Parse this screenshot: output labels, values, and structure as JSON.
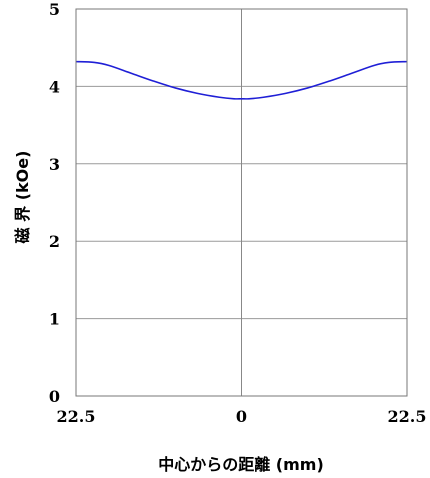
{
  "chart_data": {
    "type": "line",
    "xlabel": "中心からの距離 (mm)",
    "ylabel": "磁 界 (kOe)",
    "x_tick_labels": [
      "22.5",
      "0",
      "22.5"
    ],
    "x_tick_values": [
      -22.5,
      0,
      22.5
    ],
    "y_tick_labels": [
      "0",
      "1",
      "2",
      "3",
      "4",
      "5"
    ],
    "y_tick_values": [
      0,
      1,
      2,
      3,
      4,
      5
    ],
    "xlim": [
      -22.5,
      22.5
    ],
    "ylim": [
      0,
      5
    ],
    "grid": "horizontal",
    "series": [
      {
        "color": "#1f1fd6",
        "x": [
          -22.5,
          -20,
          -18,
          -15,
          -12,
          -9,
          -6,
          -3,
          -1,
          0,
          1,
          3,
          6,
          9,
          12,
          15,
          18,
          20,
          22.5
        ],
        "y": [
          4.32,
          4.31,
          4.27,
          4.17,
          4.07,
          3.98,
          3.91,
          3.86,
          3.84,
          3.84,
          3.84,
          3.86,
          3.91,
          3.98,
          4.07,
          4.17,
          4.27,
          4.31,
          4.32
        ]
      }
    ]
  }
}
